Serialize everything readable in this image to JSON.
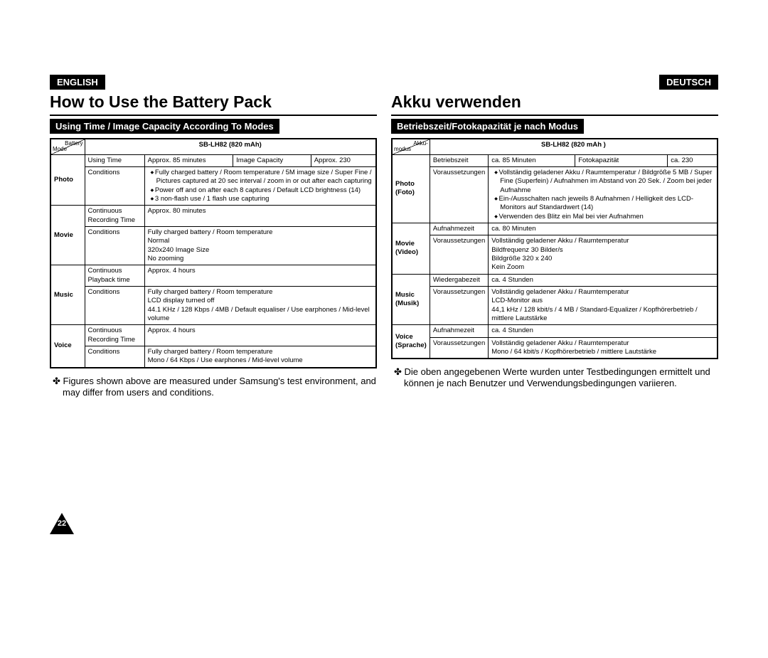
{
  "page_number": "22",
  "en": {
    "lang": "ENGLISH",
    "title": "How to Use the Battery Pack",
    "subtitle": "Using Time / Image Capacity According To Modes",
    "diag_top": "Battery",
    "diag_bottom": "Mode",
    "battery_model": "SB-LH82 (820 mAh)",
    "rows": {
      "photo_mode": "Photo",
      "photo_time_lbl": "Using Time",
      "photo_time_val": "Approx. 85 minutes",
      "photo_cap_lbl": "Image Capacity",
      "photo_cap_val": "Approx. 230",
      "photo_cond_lbl": "Conditions",
      "photo_cond_1": "Fully charged battery / Room temperature / 5M image size / Super Fine / Pictures captured at 20 sec interval / zoom in or out after each capturing",
      "photo_cond_2": "Power off and on after each 8 captures / Default LCD brightness (14)",
      "photo_cond_3": "3 non-flash use / 1 flash use capturing",
      "movie_mode": "Movie",
      "movie_time_lbl": "Continuous Recording Time",
      "movie_time_val": "Approx. 80 minutes",
      "movie_cond_lbl": "Conditions",
      "movie_cond_1": "Fully charged battery / Room temperature",
      "movie_cond_2": "Normal",
      "movie_cond_3": "320x240 Image Size",
      "movie_cond_4": "No zooming",
      "music_mode": "Music",
      "music_time_lbl": "Continuous Playback time",
      "music_time_val": "Approx. 4 hours",
      "music_cond_lbl": "Conditions",
      "music_cond_1": "Fully charged battery / Room temperature",
      "music_cond_2": "LCD display turned off",
      "music_cond_3": "44.1 KHz / 128 Kbps / 4MB / Default equaliser / Use earphones / Mid-level volume",
      "voice_mode": "Voice",
      "voice_time_lbl": "Continuous Recording Time",
      "voice_time_val": "Approx. 4 hours",
      "voice_cond_lbl": "Conditions",
      "voice_cond_1": "Fully charged battery / Room temperature",
      "voice_cond_2": "Mono / 64 Kbps / Use earphones / Mid-level volume"
    },
    "note": "Figures shown above are measured under Samsung's test environment, and may differ from users and conditions."
  },
  "de": {
    "lang": "DEUTSCH",
    "title": "Akku verwenden",
    "subtitle": "Betriebszeit/Fotokapazität je nach Modus",
    "diag_top": "Akku-",
    "diag_bottom": "modus",
    "battery_model": "SB-LH82 (820 mAh )",
    "rows": {
      "photo_mode": "Photo (Foto)",
      "photo_time_lbl": "Betriebszeit",
      "photo_time_val": "ca. 85 Minuten",
      "photo_cap_lbl": "Fotokapazität",
      "photo_cap_val": "ca. 230",
      "photo_cond_lbl": "Voraussetzungen",
      "photo_cond_1": "Vollständig geladener Akku / Raumtemperatur / Bildgröße 5 MB / Super Fine (Superfein) / Aufnahmen im Abstand von 20 Sek. / Zoom bei jeder Aufnahme",
      "photo_cond_2": "Ein-/Ausschalten nach jeweils 8 Aufnahmen / Helligkeit des LCD-Monitors auf Standardwert (14)",
      "photo_cond_3": "Verwenden des Blitz ein Mal bei vier Aufnahmen",
      "movie_mode": "Movie (Video)",
      "movie_time_lbl": "Aufnahmezeit",
      "movie_time_val": "ca. 80 Minuten",
      "movie_cond_lbl": "Voraussetzungen",
      "movie_cond_1": "Vollständig geladener Akku / Raumtemperatur",
      "movie_cond_2": "Bildfrequenz 30 Bilder/s",
      "movie_cond_3": "Bildgröße 320 x 240",
      "movie_cond_4": "Kein Zoom",
      "music_mode": "Music (Musik)",
      "music_time_lbl": "Wiedergabezeit",
      "music_time_val": "ca. 4 Stunden",
      "music_cond_lbl": "Voraussetzungen",
      "music_cond_1": "Vollständig geladener Akku / Raumtemperatur",
      "music_cond_2": "LCD-Monitor aus",
      "music_cond_3": "44,1 kHz / 128 kbit/s / 4 MB / Standard-Equalizer / Kopfhörerbetrieb / mittlere Lautstärke",
      "voice_mode": "Voice (Sprache)",
      "voice_time_lbl": "Aufnahmezeit",
      "voice_time_val": "ca. 4 Stunden",
      "voice_cond_lbl": "Voraussetzungen",
      "voice_cond_1": "Vollständig geladener Akku / Raumtemperatur",
      "voice_cond_2": "Mono / 64 kbit/s / Kopfhörerbetrieb / mittlere Lautstärke"
    },
    "note": "Die oben angegebenen Werte wurden unter Testbedingungen ermittelt und können je nach Benutzer und Verwendungsbedingungen variieren."
  }
}
